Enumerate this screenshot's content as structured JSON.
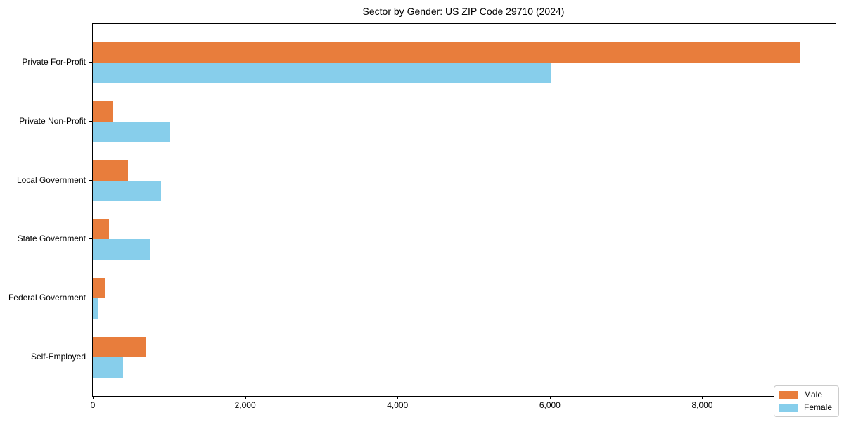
{
  "chart_data": {
    "type": "bar",
    "orientation": "horizontal",
    "title": "Sector by Gender: US ZIP Code 29710 (2024)",
    "xlabel": "",
    "ylabel": "",
    "categories": [
      "Private For-Profit",
      "Private Non-Profit",
      "Local Government",
      "State Government",
      "Federal Government",
      "Self-Employed"
    ],
    "series": [
      {
        "name": "Male",
        "color": "#e87d3c",
        "values": [
          9280,
          270,
          460,
          210,
          160,
          690
        ]
      },
      {
        "name": "Female",
        "color": "#87ceeb",
        "values": [
          6010,
          1010,
          900,
          750,
          75,
          400
        ]
      }
    ],
    "xlim": [
      0,
      9750
    ],
    "xticks": {
      "values": [
        0,
        2000,
        4000,
        6000,
        8000
      ],
      "labels": [
        "0",
        "2,000",
        "4,000",
        "6,000",
        "8,000"
      ]
    },
    "grid": false,
    "legend": {
      "position": "lower right",
      "entries": [
        "Male",
        "Female"
      ]
    },
    "frame_color": "#000000",
    "background_color": "#ffffff"
  }
}
